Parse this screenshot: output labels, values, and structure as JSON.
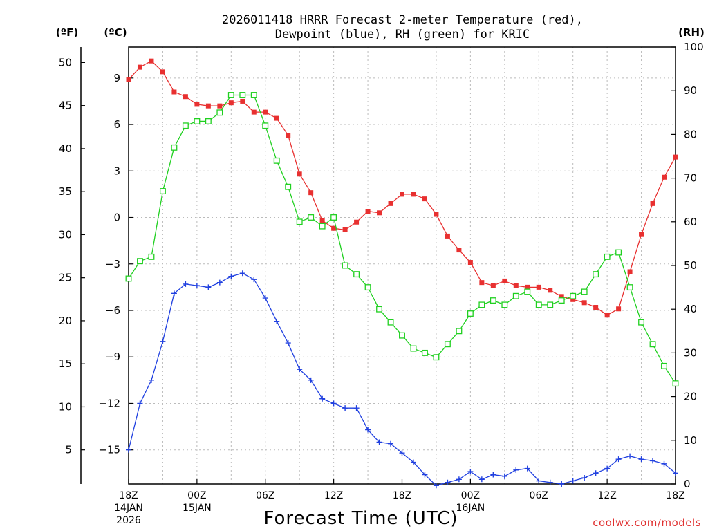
{
  "colors": {
    "temperature": "#e83030",
    "dewpoint": "#2040e0",
    "rh": "#20d020",
    "credit": "#e03030"
  },
  "chart_data": {
    "type": "line",
    "title_line1": "2026011418 HRRR Forecast 2-meter Temperature (red),",
    "title_line2": "Dewpoint (blue), RH (green) for KRIC",
    "xlabel": "Forecast Time (UTC)",
    "credit": "coolwx.com/models",
    "units": {
      "fahrenheit": "(ºF)",
      "celsius": "(ºC)",
      "rh": "(RH)"
    },
    "x_hours": [
      0,
      1,
      2,
      3,
      4,
      5,
      6,
      7,
      8,
      9,
      10,
      11,
      12,
      13,
      14,
      15,
      16,
      17,
      18,
      19,
      20,
      21,
      22,
      23,
      24,
      25,
      26,
      27,
      28,
      29,
      30,
      31,
      32,
      33,
      34,
      35,
      36,
      37,
      38,
      39,
      40,
      41,
      42,
      43,
      44,
      45,
      46,
      47,
      48
    ],
    "xlim": [
      0,
      48
    ],
    "ylim_celsius": [
      -17.2,
      11.0
    ],
    "ylim_rh": [
      0,
      100
    ],
    "fahrenheit_ticks": [
      "50",
      "45",
      "40",
      "35",
      "30",
      "25",
      "20",
      "15",
      "10",
      "5"
    ],
    "fahrenheit_tick_values": [
      50,
      45,
      40,
      35,
      30,
      25,
      20,
      15,
      10,
      5
    ],
    "celsius_ticks": [
      "9",
      "6",
      "3",
      "0",
      "−3",
      "−6",
      "−9",
      "−12",
      "−15"
    ],
    "celsius_tick_values": [
      9,
      6,
      3,
      0,
      -3,
      -6,
      -9,
      -12,
      -15
    ],
    "rh_ticks": [
      "100",
      "90",
      "80",
      "70",
      "60",
      "50",
      "40",
      "30",
      "20",
      "10",
      "0"
    ],
    "rh_tick_values": [
      100,
      90,
      80,
      70,
      60,
      50,
      40,
      30,
      20,
      10,
      0
    ],
    "x_ticks": [
      {
        "hour": 0,
        "lines": [
          "18Z",
          "14JAN",
          "2026"
        ]
      },
      {
        "hour": 6,
        "lines": [
          "00Z",
          "15JAN"
        ]
      },
      {
        "hour": 12,
        "lines": [
          "06Z"
        ]
      },
      {
        "hour": 18,
        "lines": [
          "12Z"
        ]
      },
      {
        "hour": 24,
        "lines": [
          "18Z"
        ]
      },
      {
        "hour": 30,
        "lines": [
          "00Z",
          "16JAN"
        ]
      },
      {
        "hour": 36,
        "lines": [
          "06Z"
        ]
      },
      {
        "hour": 42,
        "lines": [
          "12Z"
        ]
      },
      {
        "hour": 48,
        "lines": [
          "18Z"
        ]
      }
    ],
    "series": [
      {
        "name": "Temperature",
        "units": "C",
        "values": [
          8.9,
          9.7,
          10.1,
          9.4,
          8.1,
          7.8,
          7.3,
          7.2,
          7.2,
          7.4,
          7.5,
          6.8,
          6.8,
          6.4,
          5.3,
          2.8,
          1.6,
          -0.2,
          -0.7,
          -0.8,
          -0.3,
          0.4,
          0.3,
          0.9,
          1.5,
          1.5,
          1.2,
          0.2,
          -1.2,
          -2.1,
          -2.9,
          -4.2,
          -4.4,
          -4.1,
          -4.4,
          -4.5,
          -4.5,
          -4.7,
          -5.1,
          -5.3,
          -5.5,
          -5.8,
          -6.3,
          -5.9,
          -3.5,
          -1.1,
          0.9,
          2.6,
          3.9
        ]
      },
      {
        "name": "Dewpoint",
        "units": "C",
        "values": [
          -15.0,
          -12.0,
          -10.5,
          -8.0,
          -4.9,
          -4.3,
          -4.4,
          -4.5,
          -4.2,
          -3.8,
          -3.6,
          -4.0,
          -5.2,
          -6.7,
          -8.1,
          -9.8,
          -10.5,
          -11.7,
          -12.0,
          -12.3,
          -12.3,
          -13.7,
          -14.5,
          -14.6,
          -15.2,
          -15.8,
          -16.6,
          -17.3,
          -17.1,
          -16.9,
          -16.4,
          -16.9,
          -16.6,
          -16.7,
          -16.3,
          -16.2,
          -17.0,
          -17.1,
          -17.2,
          -17.0,
          -16.8,
          -16.5,
          -16.2,
          -15.6,
          -15.4,
          -15.6,
          -15.7,
          -15.9,
          -16.5
        ]
      },
      {
        "name": "RH",
        "units": "%",
        "values": [
          47,
          51,
          52,
          67,
          77,
          82,
          83,
          83,
          85,
          89,
          89,
          89,
          82,
          74,
          68,
          60,
          61,
          59,
          61,
          50,
          48,
          45,
          40,
          37,
          34,
          31,
          30,
          29,
          32,
          35,
          39,
          41,
          42,
          41,
          43,
          44,
          41,
          41,
          42,
          43,
          44,
          48,
          52,
          53,
          45,
          37,
          32,
          27,
          23
        ]
      }
    ]
  }
}
